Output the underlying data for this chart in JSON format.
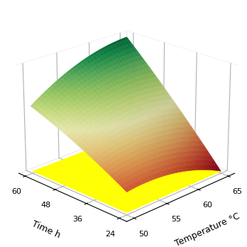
{
  "x_label": "Temperature °C",
  "y_label": "Time h",
  "x_range": [
    50,
    65
  ],
  "y_range": [
    24,
    60
  ],
  "x_ticks": [
    50,
    55,
    60,
    65
  ],
  "y_ticks": [
    24,
    36,
    48,
    60
  ],
  "view_elev": 22,
  "view_azim": -135,
  "background_color": "#ffffff",
  "surface_alpha": 1.0,
  "n_points": 60
}
